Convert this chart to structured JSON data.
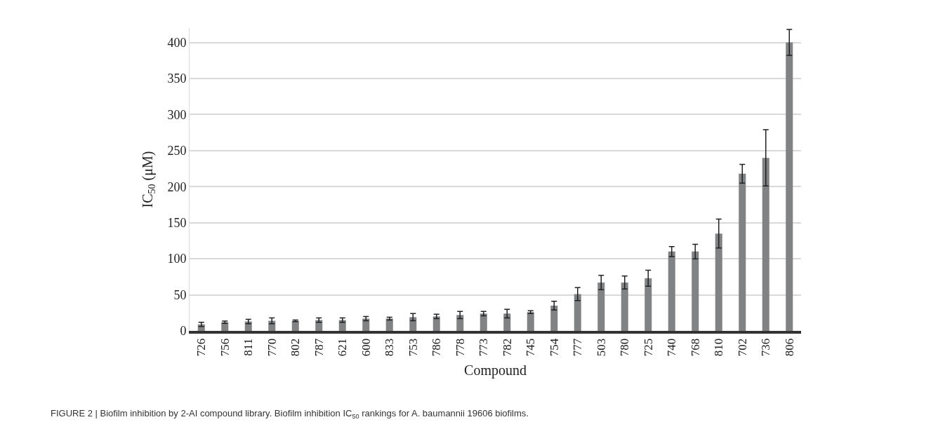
{
  "chart_data": {
    "type": "bar",
    "xlabel": "Compound",
    "ylabel": "IC$_{50}$ (μM)",
    "categories": [
      "726",
      "756",
      "811",
      "770",
      "802",
      "787",
      "621",
      "600",
      "833",
      "753",
      "786",
      "778",
      "773",
      "782",
      "745",
      "754",
      "777",
      "503",
      "780",
      "725",
      "740",
      "768",
      "810",
      "702",
      "736",
      "806"
    ],
    "values": [
      9,
      12,
      13,
      14,
      14,
      15,
      15,
      17,
      17,
      19,
      20,
      22,
      24,
      24,
      26,
      35,
      51,
      67,
      67,
      73,
      110,
      110,
      135,
      218,
      240,
      400
    ],
    "errors": [
      3,
      1.5,
      3,
      4,
      1,
      3,
      3,
      3,
      2,
      5,
      3,
      5,
      3,
      6,
      2,
      6,
      9,
      10,
      9,
      11,
      7,
      10,
      20,
      13,
      39,
      18
    ],
    "color": "#808284",
    "ylim": [
      0,
      420
    ],
    "yticks": [
      0,
      50,
      100,
      150,
      200,
      250,
      300,
      350,
      400
    ],
    "grid": "y",
    "annotations": [
      "FIGURE 2 | Biofilm inhibition by 2-AI compound library. Biofilm inhibition IC$_{50}$ rankings for A. baumannii 19606 biofilms."
    ]
  }
}
